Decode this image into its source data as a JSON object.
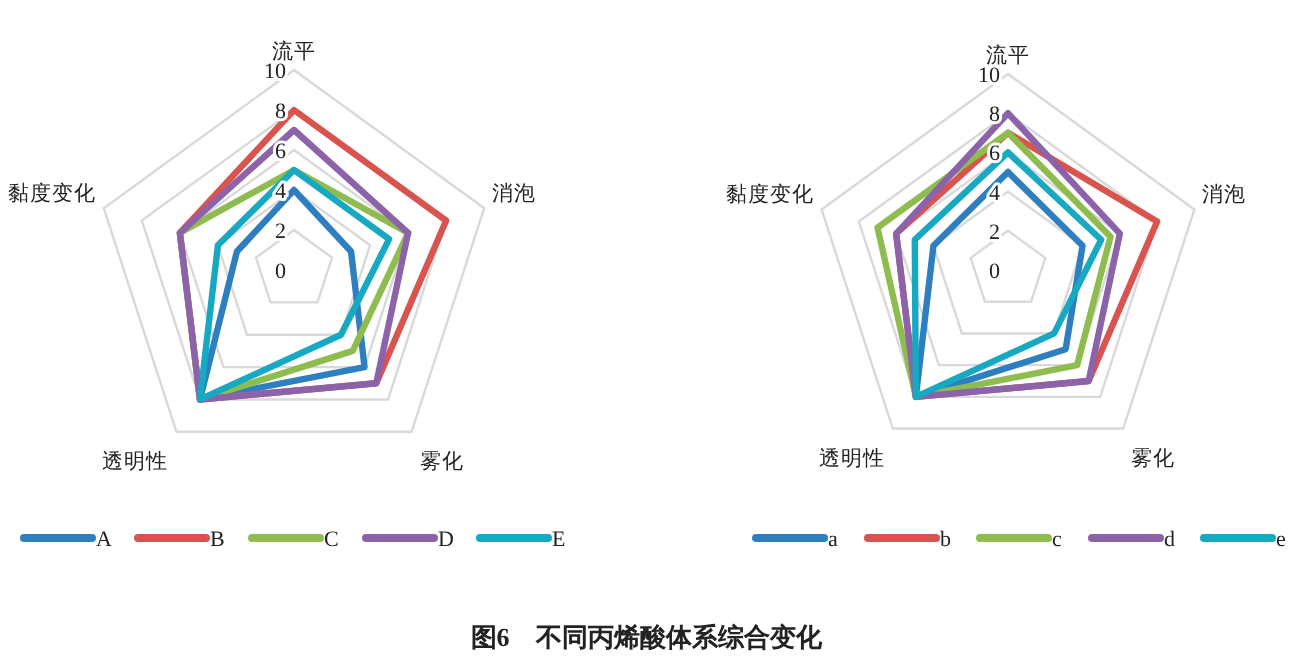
{
  "chart_data": [
    {
      "type": "radar",
      "categories": [
        "流平",
        "消泡",
        "雾化",
        "透明性",
        "黏度变化"
      ],
      "ylim": [
        0,
        10
      ],
      "yticks": [
        0,
        2,
        4,
        6,
        8,
        10
      ],
      "grid": true,
      "legend": "bottom",
      "series": [
        {
          "name": "A",
          "color": "#2e7fbf",
          "values": [
            4,
            3,
            6,
            8,
            3
          ]
        },
        {
          "name": "B",
          "color": "#d9534f",
          "values": [
            8,
            8,
            7,
            8,
            6
          ]
        },
        {
          "name": "C",
          "color": "#8fbc4f",
          "values": [
            5,
            6,
            5,
            8,
            6
          ]
        },
        {
          "name": "D",
          "color": "#8c62a8",
          "values": [
            7,
            6,
            7,
            8,
            6
          ]
        },
        {
          "name": "E",
          "color": "#17a8c2",
          "values": [
            5,
            5,
            4,
            8,
            4
          ]
        }
      ],
      "annotations": [
        "图6　不同丙烯酸体系综合变化"
      ]
    },
    {
      "type": "radar",
      "categories": [
        "流平",
        "消泡",
        "雾化",
        "透明性",
        "黏度变化"
      ],
      "ylim": [
        0,
        10
      ],
      "yticks": [
        0,
        2,
        4,
        6,
        8,
        10
      ],
      "grid": true,
      "legend": "bottom",
      "series": [
        {
          "name": "a",
          "color": "#2e7fbf",
          "values": [
            5,
            4,
            5,
            8,
            4
          ]
        },
        {
          "name": "b",
          "color": "#d9534f",
          "values": [
            7,
            8,
            7,
            8,
            6
          ]
        },
        {
          "name": "c",
          "color": "#8fbc4f",
          "values": [
            7,
            5.5,
            6,
            8,
            7
          ]
        },
        {
          "name": "d",
          "color": "#8c62a8",
          "values": [
            8,
            6,
            7,
            8,
            6
          ]
        },
        {
          "name": "e",
          "color": "#17a8c2",
          "values": [
            6,
            5,
            4,
            8,
            5
          ]
        }
      ]
    }
  ]
}
